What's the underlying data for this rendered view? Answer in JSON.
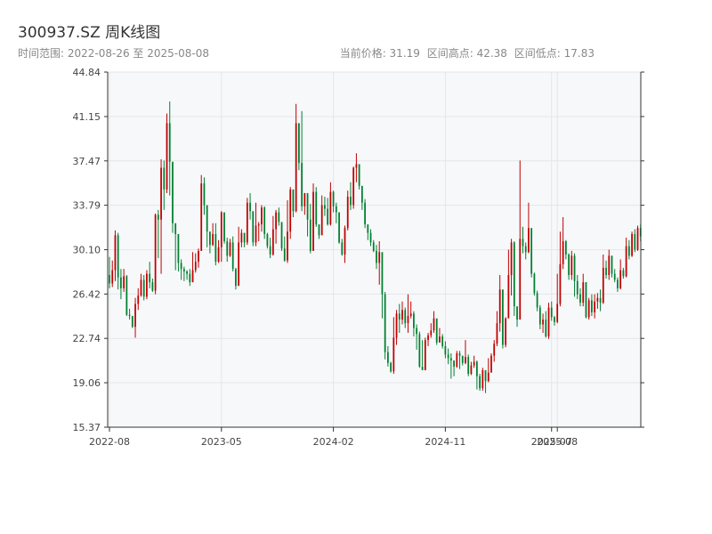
{
  "header": {
    "title": "300937.SZ 周K线图",
    "range_text": "时间范围: 2022-08-26 至 2025-08-08",
    "current_price": "当前价格: 31.19",
    "range_high": "区间高点: 42.38",
    "range_low": "区间低点: 17.83"
  },
  "colors": {
    "up": "#c00000",
    "down": "#008030",
    "plot_bg": "#f7f8fa",
    "grid": "#e3e6ea",
    "axis": "#333333"
  },
  "chart_data": {
    "type": "candlestick",
    "title": "300937.SZ 周K线图",
    "xlabel": "",
    "ylabel": "",
    "ylim": [
      15.37,
      44.84
    ],
    "y_ticks": [
      15.37,
      19.06,
      22.74,
      26.42,
      30.1,
      33.79,
      37.47,
      41.15,
      44.84
    ],
    "y_tick_labels": [
      "15.37",
      "19.06",
      "22.74",
      "26.42",
      "30.10",
      "33.79",
      "37.47",
      "41.15",
      "44.84"
    ],
    "x_ticks": [
      {
        "label": "2022-08",
        "index": 0
      },
      {
        "label": "2023-05",
        "index": 39
      },
      {
        "label": "2024-02",
        "index": 78
      },
      {
        "label": "2024-11",
        "index": 117
      },
      {
        "label": "2025-07",
        "index": 154
      },
      {
        "label": "2025-08",
        "index": 156
      }
    ],
    "grid": true,
    "candles": [
      [
        28.0,
        27.3,
        29.5,
        26.9
      ],
      [
        27.3,
        28.4,
        29.2,
        27.0
      ],
      [
        28.4,
        31.3,
        31.7,
        27.5
      ],
      [
        31.3,
        27.8,
        31.5,
        26.8
      ],
      [
        27.8,
        26.9,
        28.5,
        26.0
      ],
      [
        26.9,
        27.9,
        28.5,
        26.6
      ],
      [
        27.9,
        24.7,
        28.0,
        24.6
      ],
      [
        24.7,
        24.6,
        25.2,
        24.3
      ],
      [
        24.6,
        23.7,
        24.6,
        23.6
      ],
      [
        23.7,
        25.6,
        26.1,
        22.8
      ],
      [
        25.6,
        26.3,
        26.9,
        25.1
      ],
      [
        26.3,
        27.6,
        28.1,
        26.2
      ],
      [
        27.6,
        26.2,
        28.0,
        25.9
      ],
      [
        26.2,
        28.1,
        28.4,
        26.0
      ],
      [
        28.1,
        27.4,
        29.1,
        26.9
      ],
      [
        27.4,
        26.7,
        27.7,
        26.6
      ],
      [
        26.7,
        33.0,
        33.1,
        26.4
      ],
      [
        33.0,
        32.6,
        33.4,
        29.4
      ],
      [
        32.6,
        36.9,
        37.6,
        28.1
      ],
      [
        36.9,
        35.1,
        37.5,
        33.4
      ],
      [
        35.1,
        40.6,
        41.4,
        34.8
      ],
      [
        40.6,
        37.4,
        42.4,
        34.6
      ],
      [
        37.4,
        32.3,
        37.2,
        31.5
      ],
      [
        32.3,
        31.4,
        31.8,
        28.4
      ],
      [
        31.4,
        29.0,
        30.3,
        28.3
      ],
      [
        29.0,
        28.5,
        29.3,
        27.6
      ],
      [
        28.5,
        28.3,
        28.7,
        27.5
      ],
      [
        28.3,
        28.1,
        28.4,
        27.6
      ],
      [
        28.1,
        27.4,
        28.5,
        27.1
      ],
      [
        27.4,
        28.4,
        29.9,
        27.4
      ],
      [
        28.4,
        29.1,
        29.8,
        28.2
      ],
      [
        29.1,
        30.0,
        30.2,
        28.6
      ],
      [
        30.0,
        35.6,
        36.3,
        30.0
      ],
      [
        35.6,
        33.8,
        36.1,
        33.0
      ],
      [
        33.8,
        31.6,
        32.4,
        30.3
      ],
      [
        31.6,
        30.5,
        31.5,
        29.8
      ],
      [
        30.5,
        31.4,
        32.3,
        30.4
      ],
      [
        31.4,
        29.1,
        32.3,
        28.8
      ],
      [
        29.1,
        30.3,
        30.9,
        29.0
      ],
      [
        30.3,
        33.2,
        33.3,
        29.1
      ],
      [
        33.2,
        30.8,
        32.3,
        30.6
      ],
      [
        30.8,
        29.6,
        31.1,
        29.1
      ],
      [
        29.6,
        30.7,
        31.0,
        29.5
      ],
      [
        30.7,
        28.5,
        31.2,
        28.3
      ],
      [
        28.5,
        27.1,
        28.6,
        26.8
      ],
      [
        27.1,
        30.7,
        32.0,
        27.2
      ],
      [
        30.7,
        31.5,
        31.8,
        30.3
      ],
      [
        31.5,
        30.7,
        31.4,
        30.3
      ],
      [
        30.7,
        34.0,
        34.4,
        30.5
      ],
      [
        34.0,
        33.3,
        34.8,
        32.6
      ],
      [
        33.3,
        30.7,
        33.2,
        30.4
      ],
      [
        30.7,
        32.1,
        34.0,
        30.4
      ],
      [
        32.1,
        32.2,
        32.4,
        30.8
      ],
      [
        32.2,
        33.6,
        33.8,
        31.6
      ],
      [
        33.6,
        31.4,
        33.7,
        31.0
      ],
      [
        31.4,
        30.4,
        31.5,
        30.2
      ],
      [
        30.4,
        29.7,
        31.1,
        29.4
      ],
      [
        29.7,
        31.8,
        32.9,
        29.6
      ],
      [
        31.8,
        33.2,
        33.4,
        30.6
      ],
      [
        33.2,
        32.4,
        33.6,
        32.1
      ],
      [
        32.4,
        30.2,
        32.0,
        30.0
      ],
      [
        30.2,
        29.2,
        31.2,
        29.1
      ],
      [
        29.2,
        31.6,
        34.2,
        29.0
      ],
      [
        31.6,
        35.1,
        35.3,
        31.0
      ],
      [
        35.1,
        33.3,
        35.1,
        32.8
      ],
      [
        33.3,
        40.6,
        42.2,
        33.2
      ],
      [
        40.6,
        37.3,
        39.9,
        36.7
      ],
      [
        37.3,
        33.7,
        41.6,
        33.3
      ],
      [
        33.7,
        34.8,
        34.8,
        33.0
      ],
      [
        34.8,
        32.6,
        34.6,
        31.2
      ],
      [
        32.6,
        30.0,
        33.9,
        29.8
      ],
      [
        30.0,
        34.9,
        35.6,
        30.3
      ],
      [
        34.9,
        32.2,
        35.3,
        32.0
      ],
      [
        32.2,
        31.3,
        32.1,
        31.0
      ],
      [
        31.3,
        33.8,
        34.6,
        31.3
      ],
      [
        33.8,
        33.5,
        34.5,
        32.9
      ],
      [
        33.5,
        32.2,
        34.4,
        32.1
      ],
      [
        32.2,
        34.9,
        35.7,
        32.1
      ],
      [
        34.9,
        33.7,
        35.0,
        33.2
      ],
      [
        33.7,
        33.2,
        34.0,
        32.3
      ],
      [
        33.2,
        30.7,
        33.2,
        30.6
      ],
      [
        30.7,
        29.7,
        31.0,
        29.6
      ],
      [
        29.7,
        31.9,
        32.1,
        29.0
      ],
      [
        31.9,
        34.5,
        35.0,
        31.7
      ],
      [
        34.5,
        33.8,
        35.7,
        33.4
      ],
      [
        33.8,
        36.9,
        37.0,
        33.5
      ],
      [
        36.9,
        37.2,
        38.1,
        35.7
      ],
      [
        37.2,
        35.4,
        36.9,
        35.1
      ],
      [
        35.4,
        34.0,
        34.6,
        33.4
      ],
      [
        34.0,
        32.2,
        34.3,
        31.9
      ],
      [
        32.2,
        31.5,
        31.6,
        30.9
      ],
      [
        31.5,
        30.7,
        31.8,
        30.4
      ],
      [
        30.7,
        30.0,
        30.9,
        29.9
      ],
      [
        30.0,
        29.0,
        30.5,
        28.5
      ],
      [
        29.0,
        29.9,
        30.8,
        27.2
      ],
      [
        29.9,
        26.4,
        27.9,
        24.4
      ],
      [
        26.4,
        21.6,
        26.6,
        21.0
      ],
      [
        21.6,
        20.7,
        22.1,
        20.4
      ],
      [
        20.7,
        20.0,
        20.8,
        19.9
      ],
      [
        20.0,
        22.8,
        24.5,
        19.8
      ],
      [
        22.8,
        24.8,
        25.1,
        22.2
      ],
      [
        24.8,
        24.3,
        25.6,
        23.2
      ],
      [
        24.3,
        25.1,
        25.8,
        23.9
      ],
      [
        25.1,
        24.0,
        25.3,
        23.6
      ],
      [
        24.0,
        24.6,
        26.4,
        23.2
      ],
      [
        24.6,
        24.8,
        25.8,
        24.4
      ],
      [
        24.8,
        23.6,
        25.0,
        22.9
      ],
      [
        23.6,
        23.1,
        23.9,
        21.8
      ],
      [
        23.1,
        20.4,
        23.3,
        20.3
      ],
      [
        20.4,
        20.1,
        22.6,
        20.4
      ],
      [
        20.1,
        22.6,
        22.8,
        21.5
      ],
      [
        22.6,
        23.0,
        23.2,
        22.1
      ],
      [
        23.0,
        23.4,
        24.0,
        22.8
      ],
      [
        23.4,
        24.4,
        25.0,
        23.2
      ],
      [
        24.4,
        22.4,
        24.1,
        22.2
      ],
      [
        22.4,
        22.9,
        23.6,
        22.4
      ],
      [
        22.9,
        22.1,
        23.1,
        21.9
      ],
      [
        22.1,
        21.4,
        22.5,
        21.1
      ],
      [
        21.4,
        21.1,
        21.9,
        20.6
      ],
      [
        21.1,
        20.9,
        21.5,
        19.4
      ],
      [
        20.9,
        20.4,
        20.9,
        19.6
      ],
      [
        20.4,
        21.5,
        21.7,
        20.3
      ],
      [
        21.5,
        21.3,
        21.7,
        20.2
      ],
      [
        21.3,
        20.7,
        21.2,
        20.5
      ],
      [
        20.7,
        21.2,
        22.6,
        20.6
      ],
      [
        21.2,
        19.8,
        21.4,
        19.6
      ],
      [
        19.8,
        20.5,
        20.8,
        19.7
      ],
      [
        20.5,
        20.8,
        21.3,
        20.3
      ],
      [
        20.8,
        19.6,
        20.9,
        18.5
      ],
      [
        19.6,
        18.6,
        19.8,
        18.4
      ],
      [
        18.6,
        20.1,
        20.3,
        18.4
      ],
      [
        20.1,
        19.2,
        20.0,
        18.2
      ],
      [
        19.2,
        19.9,
        21.1,
        19.1
      ],
      [
        19.9,
        21.3,
        21.5,
        20.3
      ],
      [
        21.3,
        22.3,
        22.6,
        20.8
      ],
      [
        22.3,
        24.0,
        25.0,
        22.1
      ],
      [
        24.0,
        26.8,
        28.0,
        23.3
      ],
      [
        26.8,
        22.2,
        25.3,
        21.9
      ],
      [
        22.2,
        24.4,
        24.5,
        22.0
      ],
      [
        24.4,
        28.0,
        30.1,
        24.7
      ],
      [
        28.0,
        30.7,
        31.0,
        26.3
      ],
      [
        30.7,
        25.4,
        30.8,
        24.6
      ],
      [
        25.4,
        24.3,
        25.2,
        23.7
      ],
      [
        24.3,
        31.0,
        37.5,
        24.6
      ],
      [
        31.0,
        30.4,
        32.0,
        29.8
      ],
      [
        30.4,
        29.9,
        30.7,
        29.3
      ],
      [
        29.9,
        31.9,
        34.0,
        29.8
      ],
      [
        31.9,
        28.1,
        31.0,
        27.8
      ],
      [
        28.1,
        26.5,
        28.2,
        26.3
      ],
      [
        26.5,
        25.3,
        26.7,
        25.0
      ],
      [
        25.3,
        23.9,
        25.5,
        23.5
      ],
      [
        23.9,
        24.3,
        24.8,
        23.2
      ],
      [
        24.3,
        22.9,
        25.0,
        22.8
      ],
      [
        22.9,
        25.3,
        25.7,
        22.7
      ],
      [
        25.3,
        24.5,
        25.8,
        24.2
      ],
      [
        24.5,
        24.1,
        24.6,
        23.8
      ],
      [
        24.1,
        25.6,
        28.1,
        24.0
      ]
    ],
    "candles_tail": [
      [
        25.6,
        28.9,
        31.6,
        25.4
      ],
      [
        28.9,
        30.8,
        32.8,
        28.5
      ],
      [
        30.8,
        29.7,
        30.9,
        29.3
      ],
      [
        29.7,
        28.0,
        29.8,
        27.6
      ],
      [
        28.0,
        29.6,
        30.0,
        27.6
      ],
      [
        29.6,
        27.5,
        29.8,
        26.2
      ],
      [
        27.5,
        26.4,
        28.0,
        26.0
      ],
      [
        26.4,
        25.7,
        26.9,
        25.4
      ],
      [
        25.7,
        27.4,
        28.1,
        25.4
      ],
      [
        27.4,
        24.5,
        27.4,
        24.4
      ],
      [
        24.5,
        25.9,
        26.1,
        24.3
      ],
      [
        25.9,
        24.9,
        26.4,
        24.6
      ],
      [
        24.9,
        25.8,
        26.4,
        24.4
      ],
      [
        25.8,
        26.1,
        26.5,
        25.2
      ],
      [
        26.1,
        25.7,
        26.8,
        25.0
      ],
      [
        25.7,
        28.6,
        29.7,
        25.6
      ],
      [
        28.6,
        28.0,
        29.2,
        27.7
      ],
      [
        28.0,
        29.6,
        30.1,
        27.6
      ],
      [
        29.6,
        28.1,
        29.6,
        27.8
      ],
      [
        28.1,
        27.6,
        28.5,
        27.4
      ],
      [
        27.6,
        26.9,
        27.8,
        26.6
      ],
      [
        26.9,
        28.4,
        29.3,
        26.8
      ],
      [
        28.4,
        27.9,
        28.6,
        27.7
      ],
      [
        27.9,
        30.4,
        31.1,
        27.8
      ],
      [
        30.4,
        29.6,
        30.9,
        29.3
      ],
      [
        29.6,
        31.4,
        31.6,
        29.5
      ],
      [
        31.4,
        30.1,
        31.8,
        29.9
      ],
      [
        30.1,
        31.9,
        32.1,
        30.0
      ],
      [
        31.9,
        31.2,
        32.2,
        30.8
      ]
    ]
  }
}
